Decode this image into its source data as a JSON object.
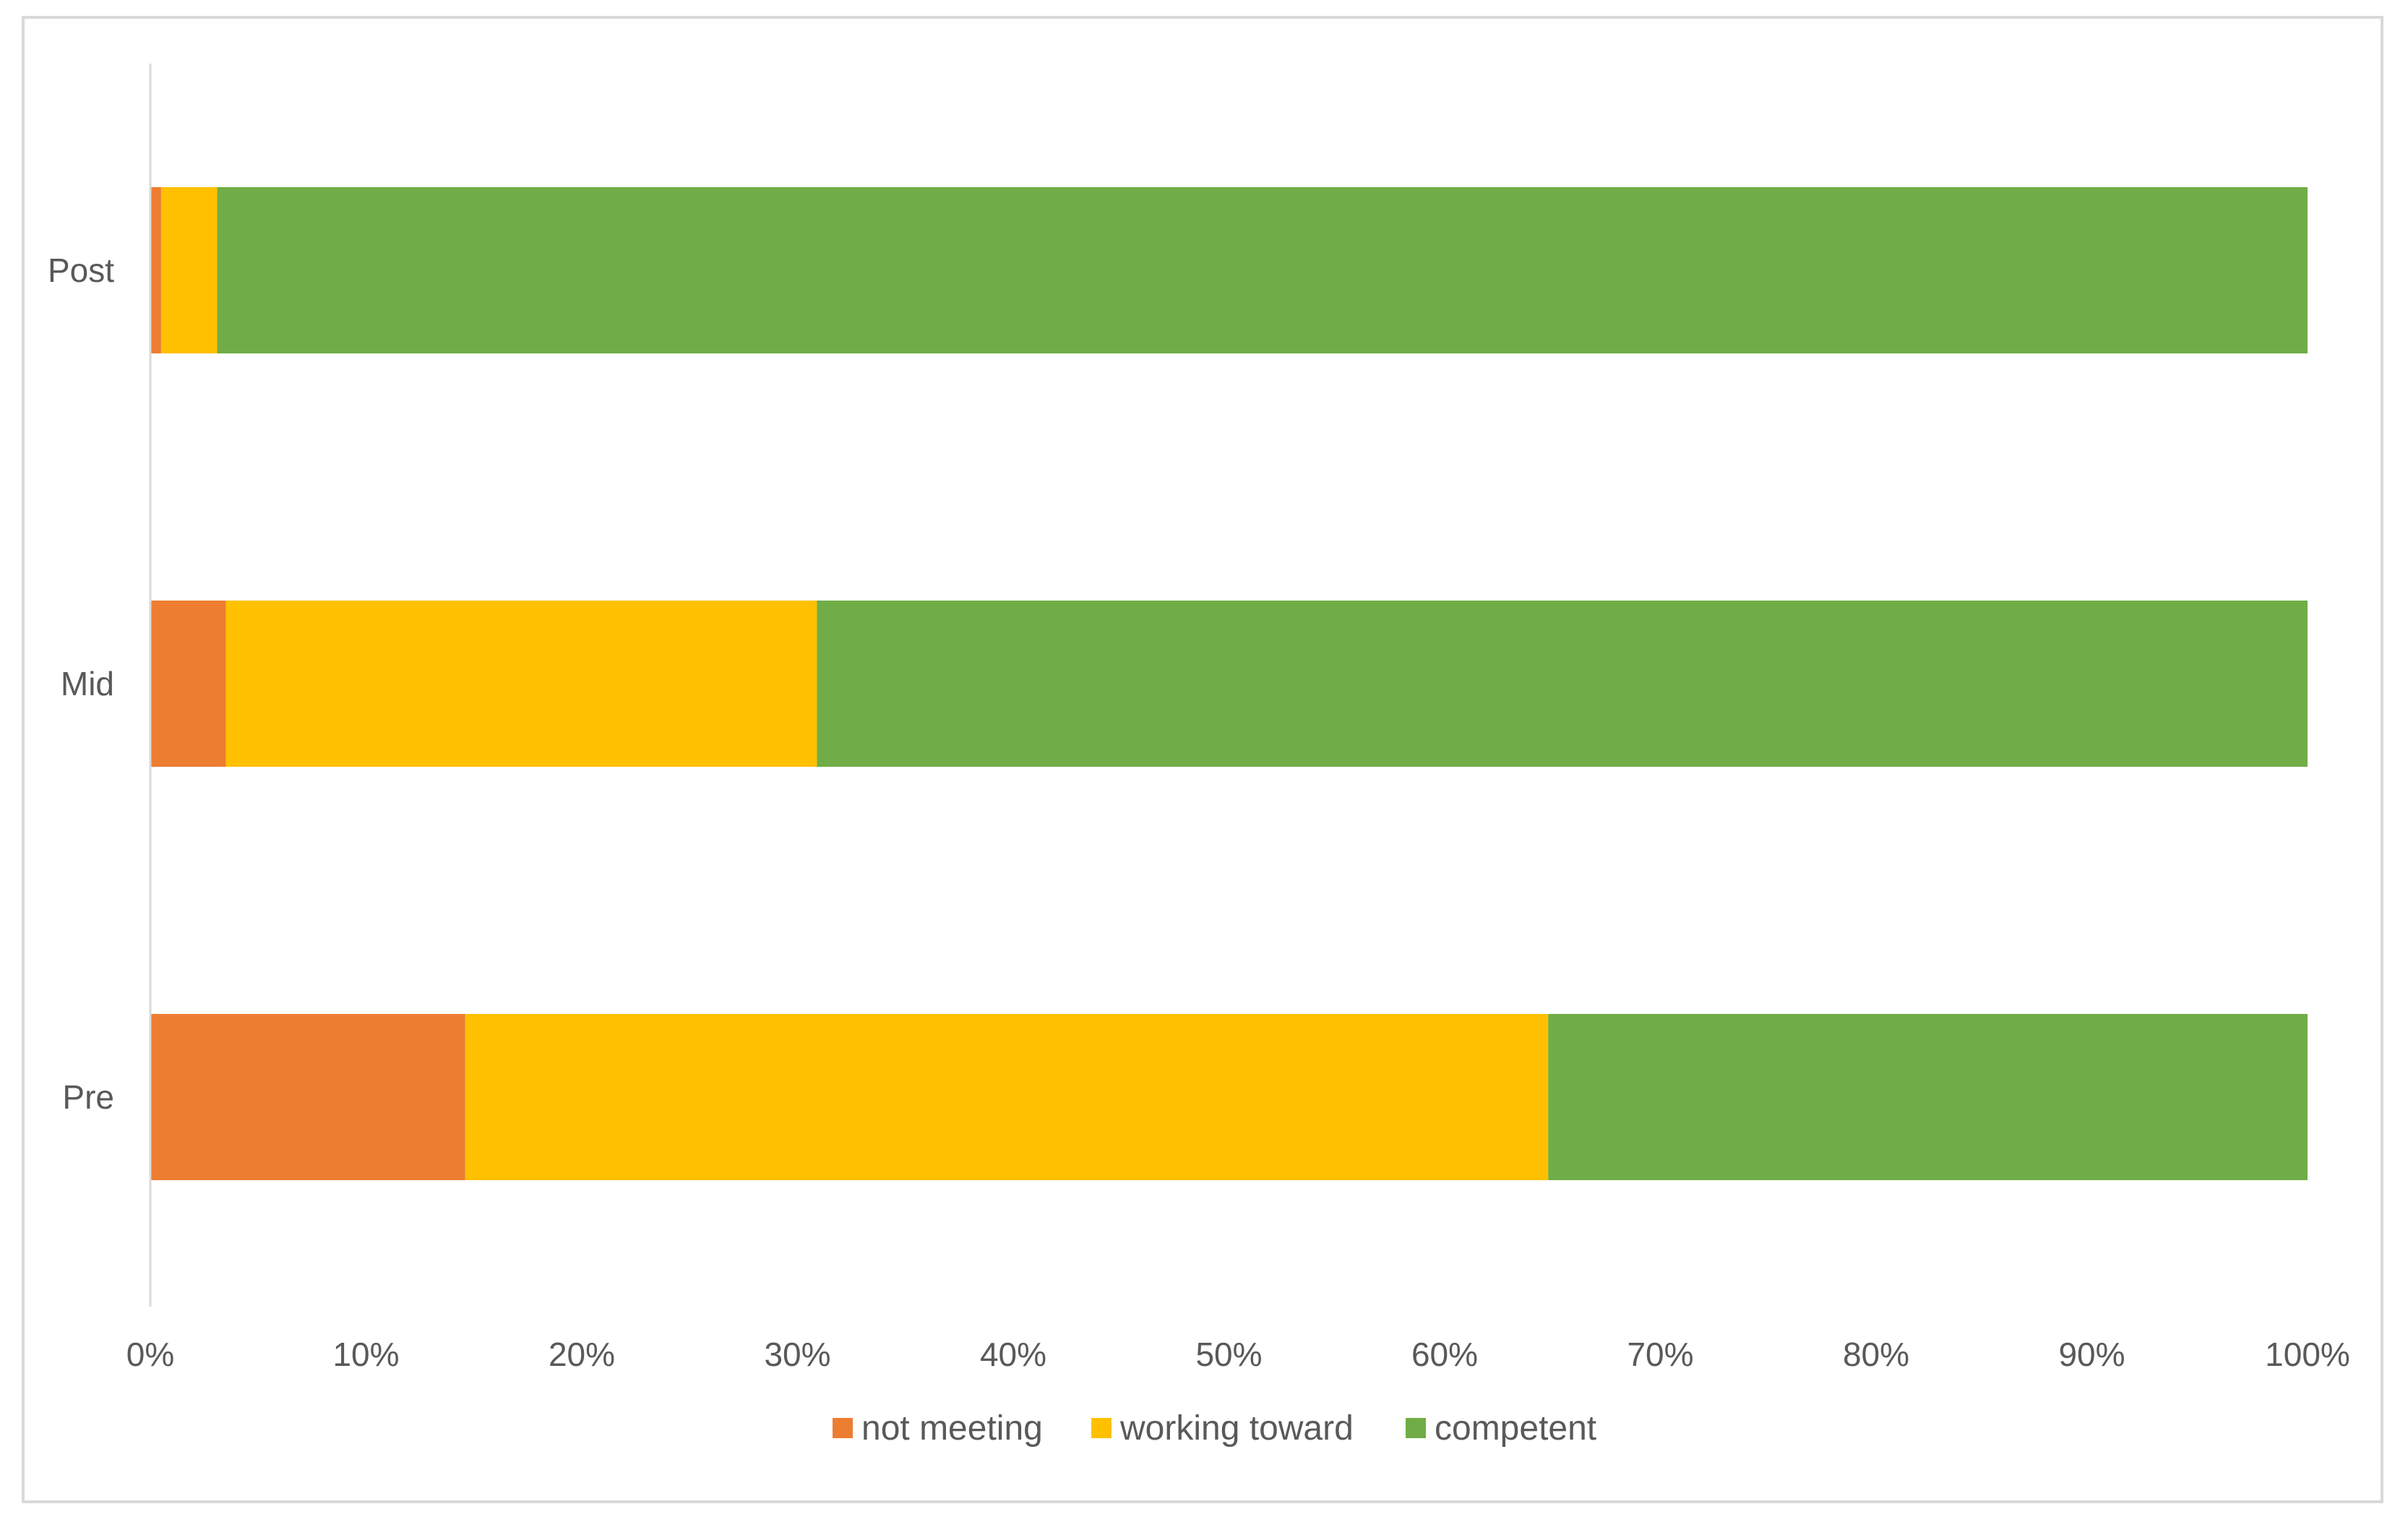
{
  "chart_data": {
    "type": "bar",
    "orientation": "horizontal",
    "stacked": "percent",
    "categories": [
      "Post",
      "Mid",
      "Pre"
    ],
    "series": [
      {
        "name": "not meeting",
        "color": "#ED7D31",
        "values": [
          0.5,
          3.5,
          14.6
        ]
      },
      {
        "name": "working toward",
        "color": "#FFC000",
        "values": [
          2.6,
          27.4,
          50.2
        ]
      },
      {
        "name": "competent",
        "color": "#70AD47",
        "values": [
          96.9,
          69.1,
          35.2
        ]
      }
    ],
    "xlim": [
      0,
      100
    ],
    "x_ticks": [
      "0%",
      "10%",
      "20%",
      "30%",
      "40%",
      "50%",
      "60%",
      "70%",
      "80%",
      "90%",
      "100%"
    ],
    "legend_position": "bottom",
    "grid": false
  }
}
